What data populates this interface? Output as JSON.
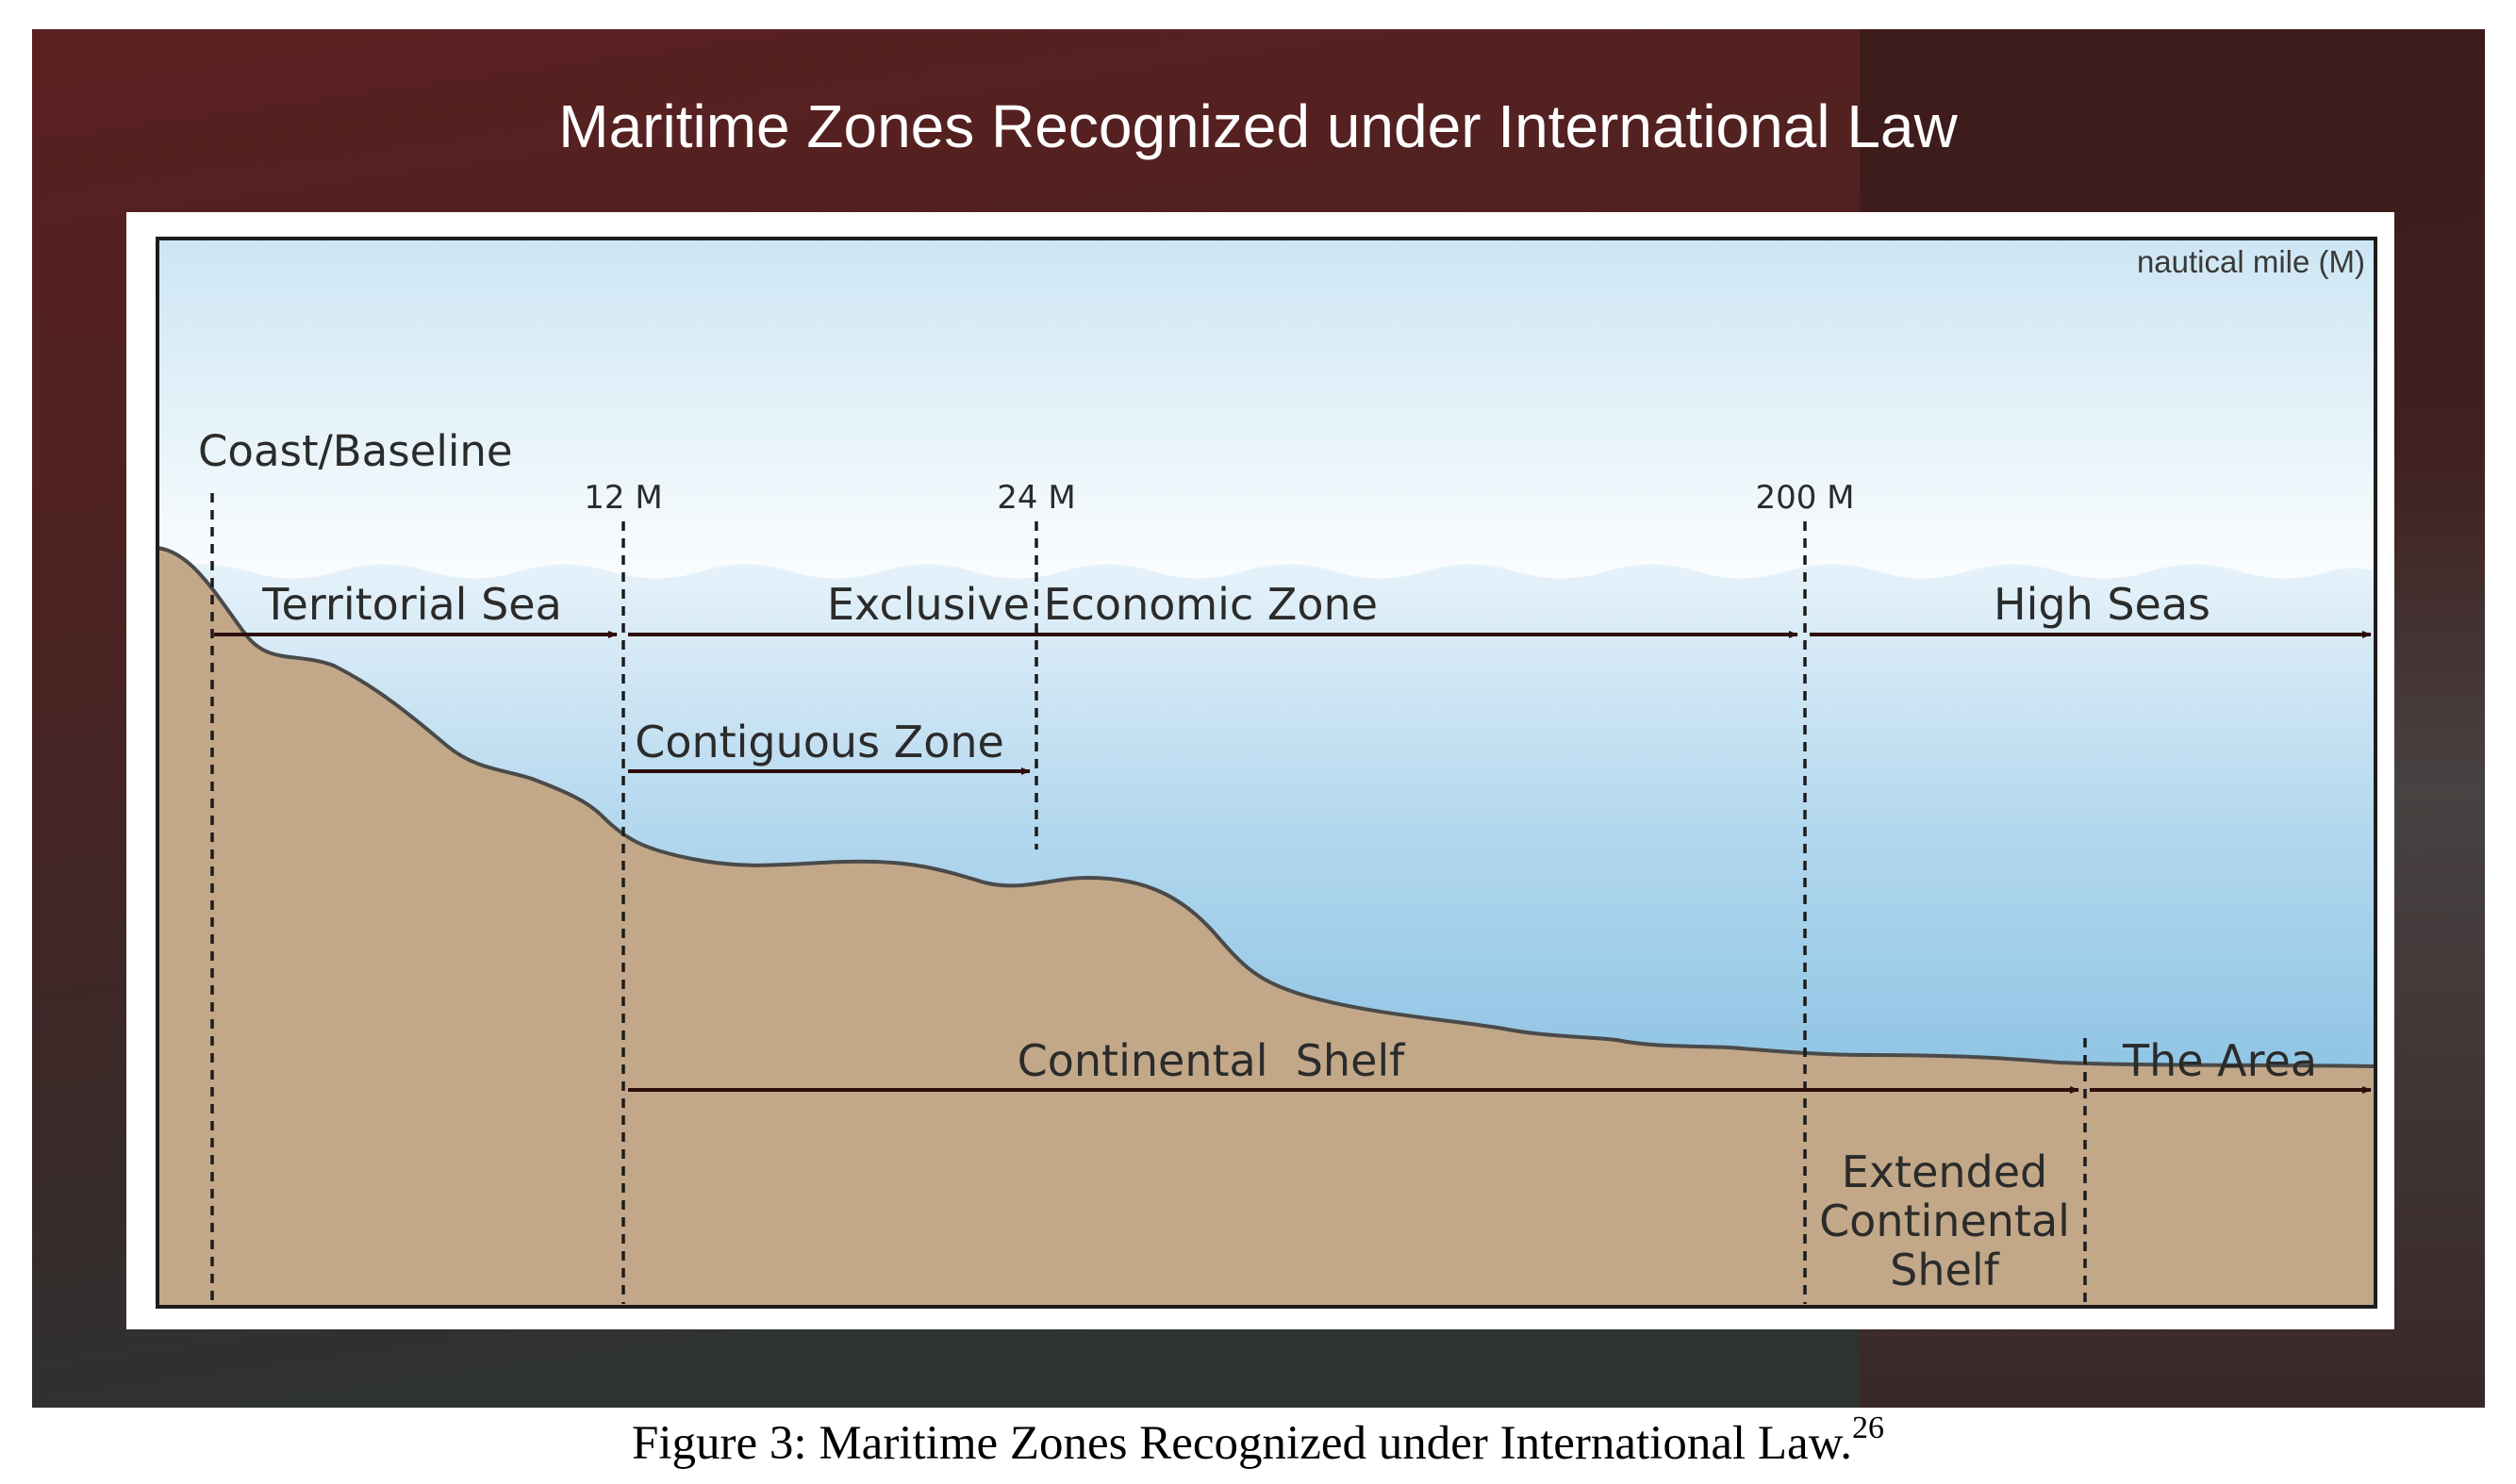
{
  "slide": {
    "title": "Maritime Zones Recognized under International Law"
  },
  "diagram": {
    "unit_label": "nautical mile (M)",
    "coast_label": "Coast/Baseline",
    "markers": {
      "m12": "12 M",
      "m24": "24 M",
      "m200": "200 M"
    },
    "zones": {
      "territorial_sea": "Territorial Sea",
      "eez": "Exclusive Economic Zone",
      "high_seas": "High Seas",
      "contiguous_zone": "Contiguous Zone",
      "continental_shelf": "Continental  Shelf",
      "the_area": "The Area",
      "extended_shelf_line1": "Extended",
      "extended_shelf_line2": "Continental",
      "extended_shelf_line3": "Shelf"
    }
  },
  "caption": {
    "text": "Figure 3: Maritime Zones Recognized under International Law.",
    "footnote": "26"
  }
}
